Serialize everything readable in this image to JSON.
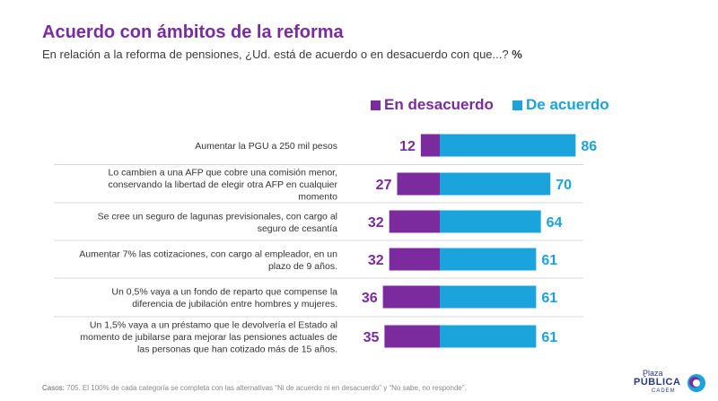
{
  "header": {
    "title": "Acuerdo con ámbitos de la reforma",
    "subtitle": "En relación a la reforma de pensiones, ¿Ud. está de acuerdo o en desacuerdo con que...?",
    "subtitle_suffix": "%"
  },
  "footer": {
    "label": "Casos:",
    "text": "705. El 100% de cada categoría se completa con las alternativas “Ni de acuerdo ni en desacuerdo” y “No sabe, no responde”."
  },
  "logo": {
    "line1": "Plaza",
    "line2": "PÚBLICA",
    "line3": "CADEM"
  },
  "colors": {
    "disagree": "#7b2b9e",
    "agree": "#1ba3dc",
    "title": "#7b2b9e"
  },
  "chart_data": {
    "type": "bar",
    "orientation": "horizontal-diverging",
    "categories": [
      [
        "Aumentar la PGU a 250 mil pesos"
      ],
      [
        "Lo cambien a una AFP que cobre una comisión menor,",
        "conservando la libertad de elegir otra AFP en cualquier",
        "momento"
      ],
      [
        "Se cree un seguro de lagunas previsionales, con cargo al",
        "seguro de cesantía"
      ],
      [
        "Aumentar 7% las cotizaciones, con cargo al empleador, en un",
        "plazo de 9 años."
      ],
      [
        "Un 0,5% vaya a un fondo de reparto que compense la",
        "diferencia de jubilación entre hombres y mujeres."
      ],
      [
        "Un 1,5% vaya a un préstamo que le devolvería el Estado al",
        "momento de jubilarse para mejorar las pensiones actuales de",
        "las personas que han cotizado más de 15 años."
      ]
    ],
    "series": [
      {
        "name": "En desacuerdo",
        "values": [
          12,
          27,
          32,
          32,
          36,
          35
        ]
      },
      {
        "name": "De acuerdo",
        "values": [
          86,
          70,
          64,
          61,
          61,
          61
        ]
      }
    ],
    "legend_position": "top",
    "data_labels": true,
    "grid": false
  }
}
